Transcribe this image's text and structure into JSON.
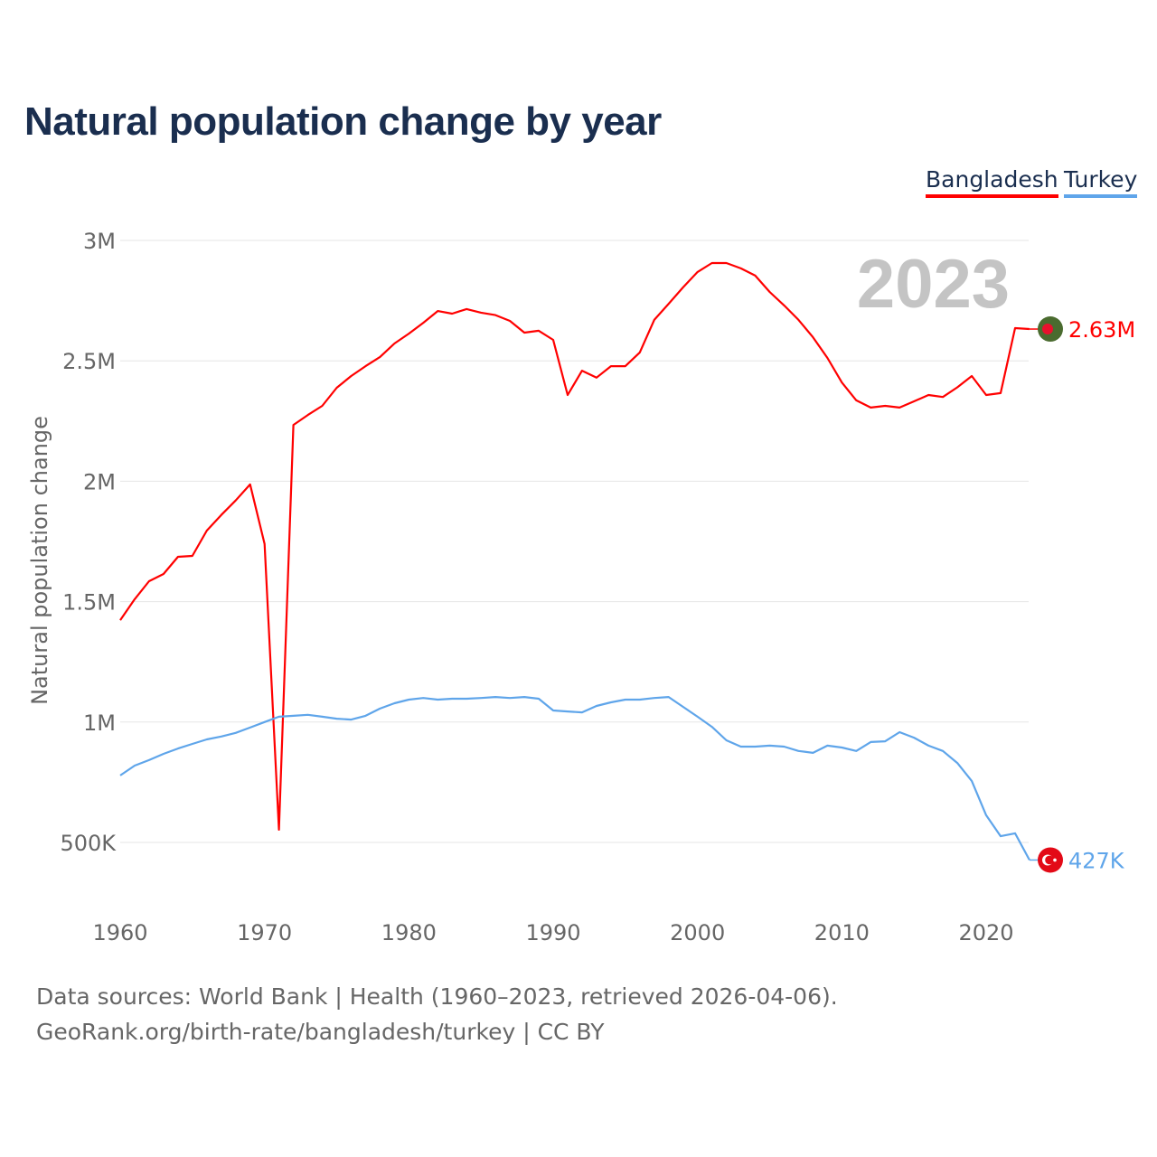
{
  "chart_data": {
    "type": "line",
    "title": "Natural population change by year",
    "ylabel": "Natural population change",
    "xlabel": "",
    "xlim": [
      1960,
      2023
    ],
    "ylim": [
      300000,
      3000000
    ],
    "x_ticks": [
      1960,
      1970,
      1980,
      1990,
      2000,
      2010,
      2020
    ],
    "y_ticks": [
      {
        "v": 3000000,
        "label": "3M"
      },
      {
        "v": 2500000,
        "label": "2.5M"
      },
      {
        "v": 2000000,
        "label": "2M"
      },
      {
        "v": 1500000,
        "label": "1.5M"
      },
      {
        "v": 1000000,
        "label": "1M"
      },
      {
        "v": 500000,
        "label": "500K"
      }
    ],
    "grid": true,
    "legend_placement": "top-right",
    "year_watermark": "2023",
    "x_start": 1960,
    "series": [
      {
        "name": "Bangladesh",
        "color": "#ff0000",
        "end_label": "2.63M",
        "flag": "bangladesh-flag",
        "values": [
          1.423,
          1.51,
          1.585,
          1.615,
          1.686,
          1.69,
          1.795,
          1.86,
          1.92,
          1.987,
          1.74,
          0.553,
          2.234,
          2.275,
          2.313,
          2.388,
          2.437,
          2.478,
          2.516,
          2.572,
          2.613,
          2.658,
          2.707,
          2.696,
          2.715,
          2.7,
          2.69,
          2.666,
          2.617,
          2.625,
          2.587,
          2.358,
          2.459,
          2.43,
          2.478,
          2.478,
          2.535,
          2.67,
          2.737,
          2.805,
          2.869,
          2.906,
          2.906,
          2.884,
          2.854,
          2.786,
          2.73,
          2.67,
          2.598,
          2.512,
          2.41,
          2.336,
          2.306,
          2.313,
          2.306,
          2.332,
          2.358,
          2.35,
          2.39,
          2.437,
          2.358,
          2.366,
          2.636,
          2.632
        ]
      },
      {
        "name": "Turkey",
        "color": "#5fa5ea",
        "end_label": "427K",
        "flag": "turkey-flag",
        "values": [
          0.778,
          0.819,
          0.842,
          0.868,
          0.89,
          0.909,
          0.928,
          0.94,
          0.955,
          0.977,
          1.0,
          1.022,
          1.026,
          1.03,
          1.022,
          1.014,
          1.01,
          1.026,
          1.056,
          1.078,
          1.093,
          1.1,
          1.093,
          1.097,
          1.097,
          1.1,
          1.104,
          1.1,
          1.104,
          1.097,
          1.048,
          1.044,
          1.04,
          1.067,
          1.082,
          1.093,
          1.093,
          1.1,
          1.104,
          1.063,
          1.022,
          0.98,
          0.924,
          0.898,
          0.898,
          0.902,
          0.898,
          0.88,
          0.872,
          0.902,
          0.894,
          0.88,
          0.917,
          0.92,
          0.958,
          0.935,
          0.902,
          0.88,
          0.83,
          0.755,
          0.613,
          0.526,
          0.538,
          0.427
        ]
      }
    ],
    "values_unit": "millions"
  },
  "footer": {
    "line1": "Data sources: World Bank | Health (1960–2023, retrieved 2026-04-06).",
    "line2": "GeoRank.org/birth-rate/bangladesh/turkey | CC BY"
  }
}
